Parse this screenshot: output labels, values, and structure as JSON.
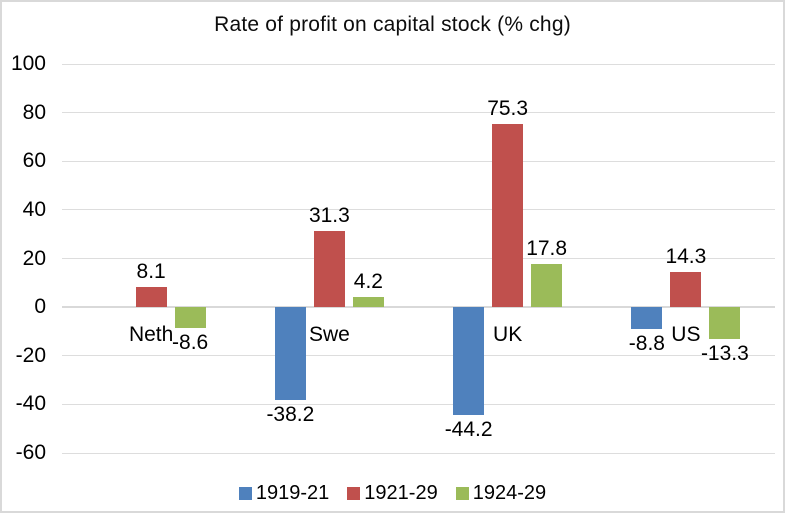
{
  "chart_data": {
    "type": "bar",
    "title": "Rate of profit on capital stock (% chg)",
    "categories": [
      "Neth",
      "Swe",
      "UK",
      "US"
    ],
    "series": [
      {
        "name": "1919-21",
        "color": "#4F81BD",
        "values": [
          null,
          -38.2,
          -44.2,
          -8.8
        ]
      },
      {
        "name": "1921-29",
        "color": "#C0504D",
        "values": [
          8.1,
          31.3,
          75.3,
          14.3
        ]
      },
      {
        "name": "1924-29",
        "color": "#9BBB59",
        "values": [
          -8.6,
          4.2,
          17.8,
          -13.3
        ]
      }
    ],
    "ylim": [
      -60,
      100
    ],
    "ytick_step": 20,
    "yticks": [
      100,
      80,
      60,
      40,
      20,
      0,
      -20,
      -40,
      -60
    ],
    "grid": true,
    "value_labels": true,
    "legend_position": "bottom",
    "colors": {
      "gridline": "#DDDDDD",
      "border": "#D9D9D9",
      "text": "#000000",
      "background": "#FFFFFF"
    }
  }
}
